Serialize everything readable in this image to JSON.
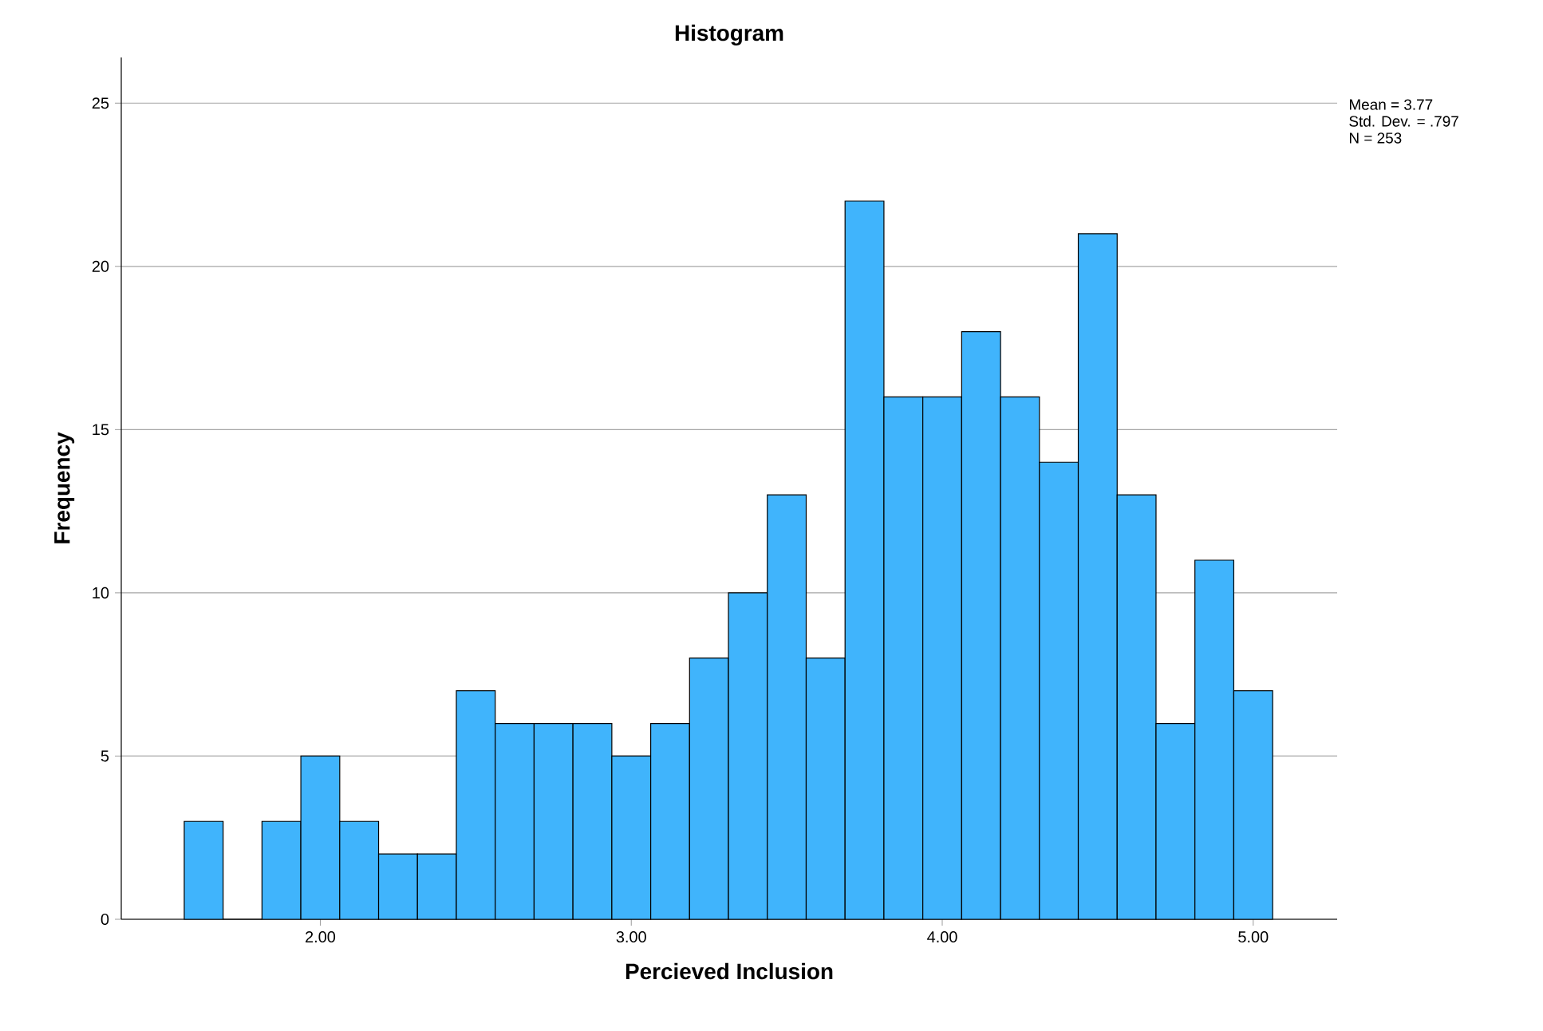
{
  "chart_data": {
    "type": "histogram",
    "title": "Histogram",
    "xlabel": "Percieved Inclusion",
    "ylabel": "Frequency",
    "bins": [
      1.5625,
      1.6875,
      1.8125,
      1.9375,
      2.0625,
      2.1875,
      2.3125,
      2.4375,
      2.5625,
      2.6875,
      2.8125,
      2.9375,
      3.0625,
      3.1875,
      3.3125,
      3.4375,
      3.5625,
      3.6875,
      3.8125,
      3.9375,
      4.0625,
      4.1875,
      4.3125,
      4.4375,
      4.5625,
      4.6875,
      4.8125,
      4.9375,
      5.0625
    ],
    "values": [
      3,
      0,
      3,
      5,
      3,
      2,
      2,
      7,
      6,
      6,
      6,
      5,
      6,
      8,
      10,
      13,
      8,
      22,
      16,
      16,
      18,
      16,
      14,
      21,
      13,
      6,
      11,
      7
    ],
    "color": "#40b4fc",
    "xlim": [
      1.36,
      5.27
    ],
    "xticks": [
      {
        "value": 2,
        "label": "2.00"
      },
      {
        "value": 3,
        "label": "3.00"
      },
      {
        "value": 4,
        "label": "4.00"
      },
      {
        "value": 5,
        "label": "5.00"
      }
    ],
    "ylim": [
      0,
      26.4
    ],
    "yticks": [
      0,
      5,
      10,
      15,
      20,
      25
    ],
    "grid": "y",
    "annotations": [
      "Mean = 3.77",
      "Std. Dev. = .797",
      "N = 253"
    ]
  }
}
